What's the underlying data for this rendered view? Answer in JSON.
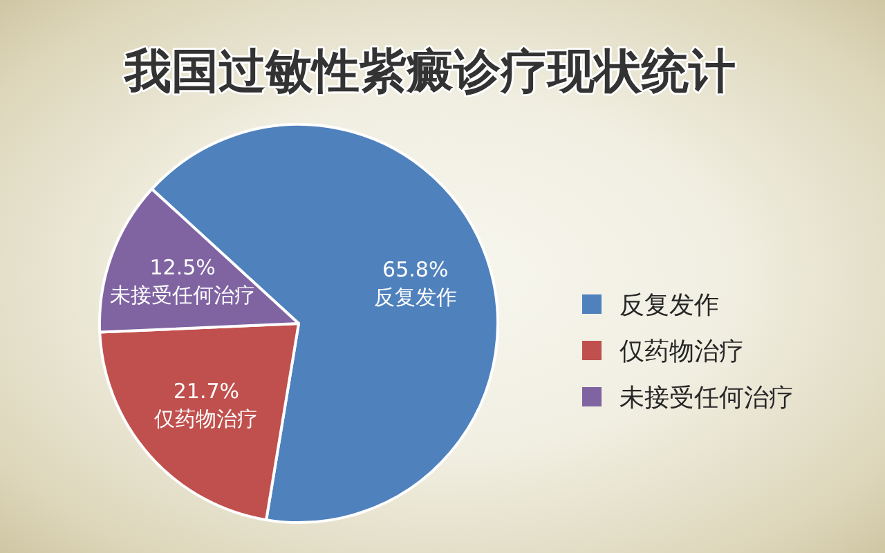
{
  "chart_data": {
    "type": "pie",
    "title": "我国过敏性紫癜诊疗现状统计",
    "categories": [
      "反复发作",
      "仅药物治疗",
      "未接受任何治疗"
    ],
    "values": [
      65.8,
      21.7,
      12.5
    ],
    "colors": [
      "#4f81bd",
      "#c0504d",
      "#8064a2"
    ],
    "value_labels": [
      "65.8%",
      "21.7%",
      "12.5%"
    ],
    "legend": "right"
  }
}
